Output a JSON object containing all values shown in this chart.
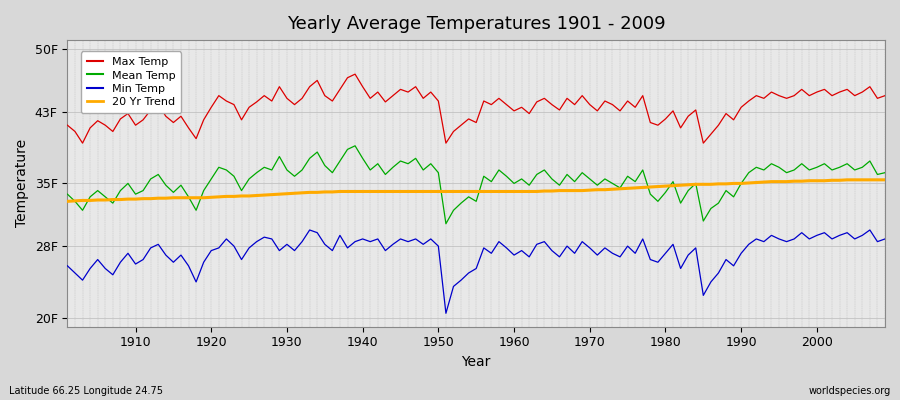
{
  "title": "Yearly Average Temperatures 1901 - 2009",
  "xlabel": "Year",
  "ylabel": "Temperature",
  "subtitle_left": "Latitude 66.25 Longitude 24.75",
  "subtitle_right": "worldspecies.org",
  "years_start": 1901,
  "years_end": 2009,
  "yticks": [
    20,
    28,
    35,
    43,
    50
  ],
  "ytick_labels": [
    "20F",
    "28F",
    "35F",
    "43F",
    "50F"
  ],
  "ylim": [
    19.0,
    51.0
  ],
  "xlim": [
    1901,
    2009
  ],
  "max_temp_color": "#dd0000",
  "mean_temp_color": "#00aa00",
  "min_temp_color": "#0000cc",
  "trend_color": "#ffaa00",
  "background_color": "#d8d8d8",
  "plot_bg_color": "#e8e8e8",
  "legend_labels": [
    "Max Temp",
    "Mean Temp",
    "Min Temp",
    "20 Yr Trend"
  ],
  "max_temp": [
    41.5,
    40.8,
    39.5,
    41.2,
    42.0,
    41.5,
    40.8,
    42.2,
    42.8,
    41.5,
    42.1,
    43.2,
    43.8,
    42.5,
    41.8,
    42.5,
    41.2,
    40.0,
    42.1,
    43.5,
    44.8,
    44.2,
    43.8,
    42.1,
    43.5,
    44.1,
    44.8,
    44.2,
    45.8,
    44.5,
    43.8,
    44.5,
    45.8,
    46.5,
    44.8,
    44.2,
    45.5,
    46.8,
    47.2,
    45.8,
    44.5,
    45.2,
    44.1,
    44.8,
    45.5,
    45.2,
    45.8,
    44.5,
    45.2,
    44.2,
    39.5,
    40.8,
    41.5,
    42.2,
    41.8,
    44.2,
    43.8,
    44.5,
    43.8,
    43.1,
    43.5,
    42.8,
    44.1,
    44.5,
    43.8,
    43.2,
    44.5,
    43.8,
    44.8,
    43.8,
    43.1,
    44.2,
    43.8,
    43.1,
    44.2,
    43.5,
    44.8,
    41.8,
    41.5,
    42.2,
    43.1,
    41.2,
    42.5,
    43.2,
    39.5,
    40.5,
    41.5,
    42.8,
    42.1,
    43.5,
    44.2,
    44.8,
    44.5,
    45.2,
    44.8,
    44.5,
    44.8,
    45.5,
    44.8,
    45.2,
    45.5,
    44.8,
    45.2,
    45.5,
    44.8,
    45.2,
    45.8,
    44.5,
    44.8
  ],
  "mean_temp": [
    33.8,
    33.0,
    32.0,
    33.5,
    34.2,
    33.5,
    32.8,
    34.2,
    35.0,
    33.8,
    34.2,
    35.5,
    36.0,
    34.8,
    34.0,
    34.8,
    33.5,
    32.0,
    34.2,
    35.5,
    36.8,
    36.5,
    35.8,
    34.2,
    35.5,
    36.2,
    36.8,
    36.5,
    38.0,
    36.5,
    35.8,
    36.5,
    37.8,
    38.5,
    37.0,
    36.2,
    37.5,
    38.8,
    39.2,
    37.8,
    36.5,
    37.2,
    36.0,
    36.8,
    37.5,
    37.2,
    37.8,
    36.5,
    37.2,
    36.2,
    30.5,
    32.0,
    32.8,
    33.5,
    33.0,
    35.8,
    35.2,
    36.5,
    35.8,
    35.0,
    35.5,
    34.8,
    36.0,
    36.5,
    35.5,
    34.8,
    36.0,
    35.2,
    36.2,
    35.5,
    34.8,
    35.5,
    35.0,
    34.5,
    35.8,
    35.2,
    36.5,
    33.8,
    33.0,
    34.0,
    35.2,
    32.8,
    34.2,
    35.0,
    30.8,
    32.2,
    32.8,
    34.2,
    33.5,
    35.0,
    36.2,
    36.8,
    36.5,
    37.2,
    36.8,
    36.2,
    36.5,
    37.2,
    36.5,
    36.8,
    37.2,
    36.5,
    36.8,
    37.2,
    36.5,
    36.8,
    37.5,
    36.0,
    36.2
  ],
  "min_temp": [
    25.8,
    25.0,
    24.2,
    25.5,
    26.5,
    25.5,
    24.8,
    26.2,
    27.2,
    26.0,
    26.5,
    27.8,
    28.2,
    27.0,
    26.2,
    27.0,
    25.8,
    24.0,
    26.2,
    27.5,
    27.8,
    28.8,
    28.0,
    26.5,
    27.8,
    28.5,
    29.0,
    28.8,
    27.5,
    28.2,
    27.5,
    28.5,
    29.8,
    29.5,
    28.2,
    27.5,
    29.2,
    27.8,
    28.5,
    28.8,
    28.5,
    28.8,
    27.5,
    28.2,
    28.8,
    28.5,
    28.8,
    28.2,
    28.8,
    28.0,
    20.5,
    23.5,
    24.2,
    25.0,
    25.5,
    27.8,
    27.2,
    28.5,
    27.8,
    27.0,
    27.5,
    26.8,
    28.2,
    28.5,
    27.5,
    26.8,
    28.0,
    27.2,
    28.5,
    27.8,
    27.0,
    27.8,
    27.2,
    26.8,
    28.0,
    27.2,
    28.8,
    26.5,
    26.2,
    27.2,
    28.2,
    25.5,
    27.0,
    27.8,
    22.5,
    24.0,
    25.0,
    26.5,
    25.8,
    27.2,
    28.2,
    28.8,
    28.5,
    29.2,
    28.8,
    28.5,
    28.8,
    29.5,
    28.8,
    29.2,
    29.5,
    28.8,
    29.2,
    29.5,
    28.8,
    29.2,
    29.8,
    28.5,
    28.8
  ],
  "trend": [
    33.0,
    33.05,
    33.1,
    33.1,
    33.15,
    33.15,
    33.2,
    33.2,
    33.25,
    33.25,
    33.3,
    33.3,
    33.35,
    33.35,
    33.4,
    33.4,
    33.4,
    33.4,
    33.4,
    33.45,
    33.5,
    33.55,
    33.55,
    33.6,
    33.6,
    33.65,
    33.7,
    33.75,
    33.8,
    33.85,
    33.9,
    33.95,
    34.0,
    34.0,
    34.05,
    34.05,
    34.1,
    34.1,
    34.1,
    34.1,
    34.1,
    34.1,
    34.1,
    34.1,
    34.1,
    34.1,
    34.1,
    34.1,
    34.1,
    34.1,
    34.1,
    34.1,
    34.1,
    34.1,
    34.1,
    34.1,
    34.1,
    34.1,
    34.1,
    34.1,
    34.1,
    34.1,
    34.1,
    34.15,
    34.15,
    34.2,
    34.2,
    34.2,
    34.2,
    34.25,
    34.3,
    34.3,
    34.35,
    34.4,
    34.45,
    34.5,
    34.55,
    34.6,
    34.65,
    34.7,
    34.75,
    34.8,
    34.85,
    34.9,
    34.9,
    34.9,
    34.95,
    34.95,
    35.0,
    35.0,
    35.05,
    35.1,
    35.15,
    35.2,
    35.2,
    35.2,
    35.25,
    35.25,
    35.3,
    35.3,
    35.3,
    35.35,
    35.35,
    35.4,
    35.4,
    35.4,
    35.4,
    35.4,
    35.4
  ]
}
